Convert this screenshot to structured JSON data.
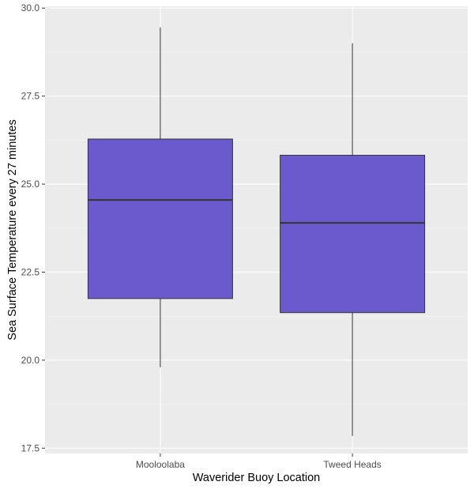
{
  "chart_data": {
    "type": "boxplot",
    "xlabel": "Waverider Buoy Location",
    "ylabel": "Sea Surface Temperature every 27 minutes",
    "ylim": [
      17.35,
      30.05
    ],
    "yticks": [
      17.5,
      20.0,
      22.5,
      25.0,
      27.5,
      30.0
    ],
    "ytick_labels": [
      "17.5",
      "20.0",
      "22.5",
      "25.0",
      "27.5",
      "30.0"
    ],
    "categories": [
      "Mooloolaba",
      "Tweed Heads"
    ],
    "boxes": [
      {
        "category": "Mooloolaba",
        "whisker_low": 19.8,
        "q1": 21.75,
        "median": 24.55,
        "q3": 26.28,
        "whisker_high": 29.45
      },
      {
        "category": "Tweed Heads",
        "whisker_low": 17.85,
        "q1": 21.35,
        "median": 23.9,
        "q3": 25.82,
        "whisker_high": 29.0
      }
    ],
    "grid": true,
    "legend": "none",
    "colors": {
      "box_fill": "#6a5acd",
      "box_stroke": "#333333",
      "panel_bg": "#ebebeb",
      "grid_major": "#ffffff",
      "grid_minor": "#f5f5f5"
    }
  }
}
